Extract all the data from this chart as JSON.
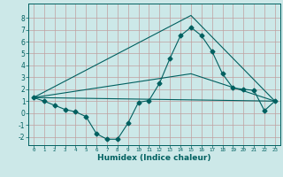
{
  "xlabel": "Humidex (Indice chaleur)",
  "bg_color": "#cce8e8",
  "grid_color": "#c0a0a0",
  "line_color": "#006060",
  "xlim": [
    -0.5,
    23.5
  ],
  "ylim": [
    -2.7,
    9.2
  ],
  "xticks": [
    0,
    1,
    2,
    3,
    4,
    5,
    6,
    7,
    8,
    9,
    10,
    11,
    12,
    13,
    14,
    15,
    16,
    17,
    18,
    19,
    20,
    21,
    22,
    23
  ],
  "yticks": [
    -2,
    -1,
    0,
    1,
    2,
    3,
    4,
    5,
    6,
    7,
    8
  ],
  "line1_x": [
    0,
    1,
    2,
    3,
    4,
    5,
    6,
    7,
    8,
    9,
    10,
    11,
    12,
    13,
    14,
    15,
    16,
    17,
    18,
    19,
    20,
    21,
    22,
    23
  ],
  "line1_y": [
    1.3,
    1.0,
    0.65,
    0.3,
    0.1,
    -0.3,
    -1.75,
    -2.2,
    -2.2,
    -0.85,
    0.9,
    1.05,
    2.5,
    4.6,
    6.5,
    7.2,
    6.5,
    5.2,
    3.3,
    2.1,
    2.0,
    1.9,
    0.2,
    1.0
  ],
  "line2_x": [
    0,
    15,
    23
  ],
  "line2_y": [
    1.3,
    8.2,
    1.0
  ],
  "line3_x": [
    0,
    23
  ],
  "line3_y": [
    1.3,
    1.0
  ],
  "line4_x": [
    0,
    15,
    23
  ],
  "line4_y": [
    1.3,
    3.3,
    1.0
  ],
  "marker_size": 2.5,
  "linewidth": 0.8
}
